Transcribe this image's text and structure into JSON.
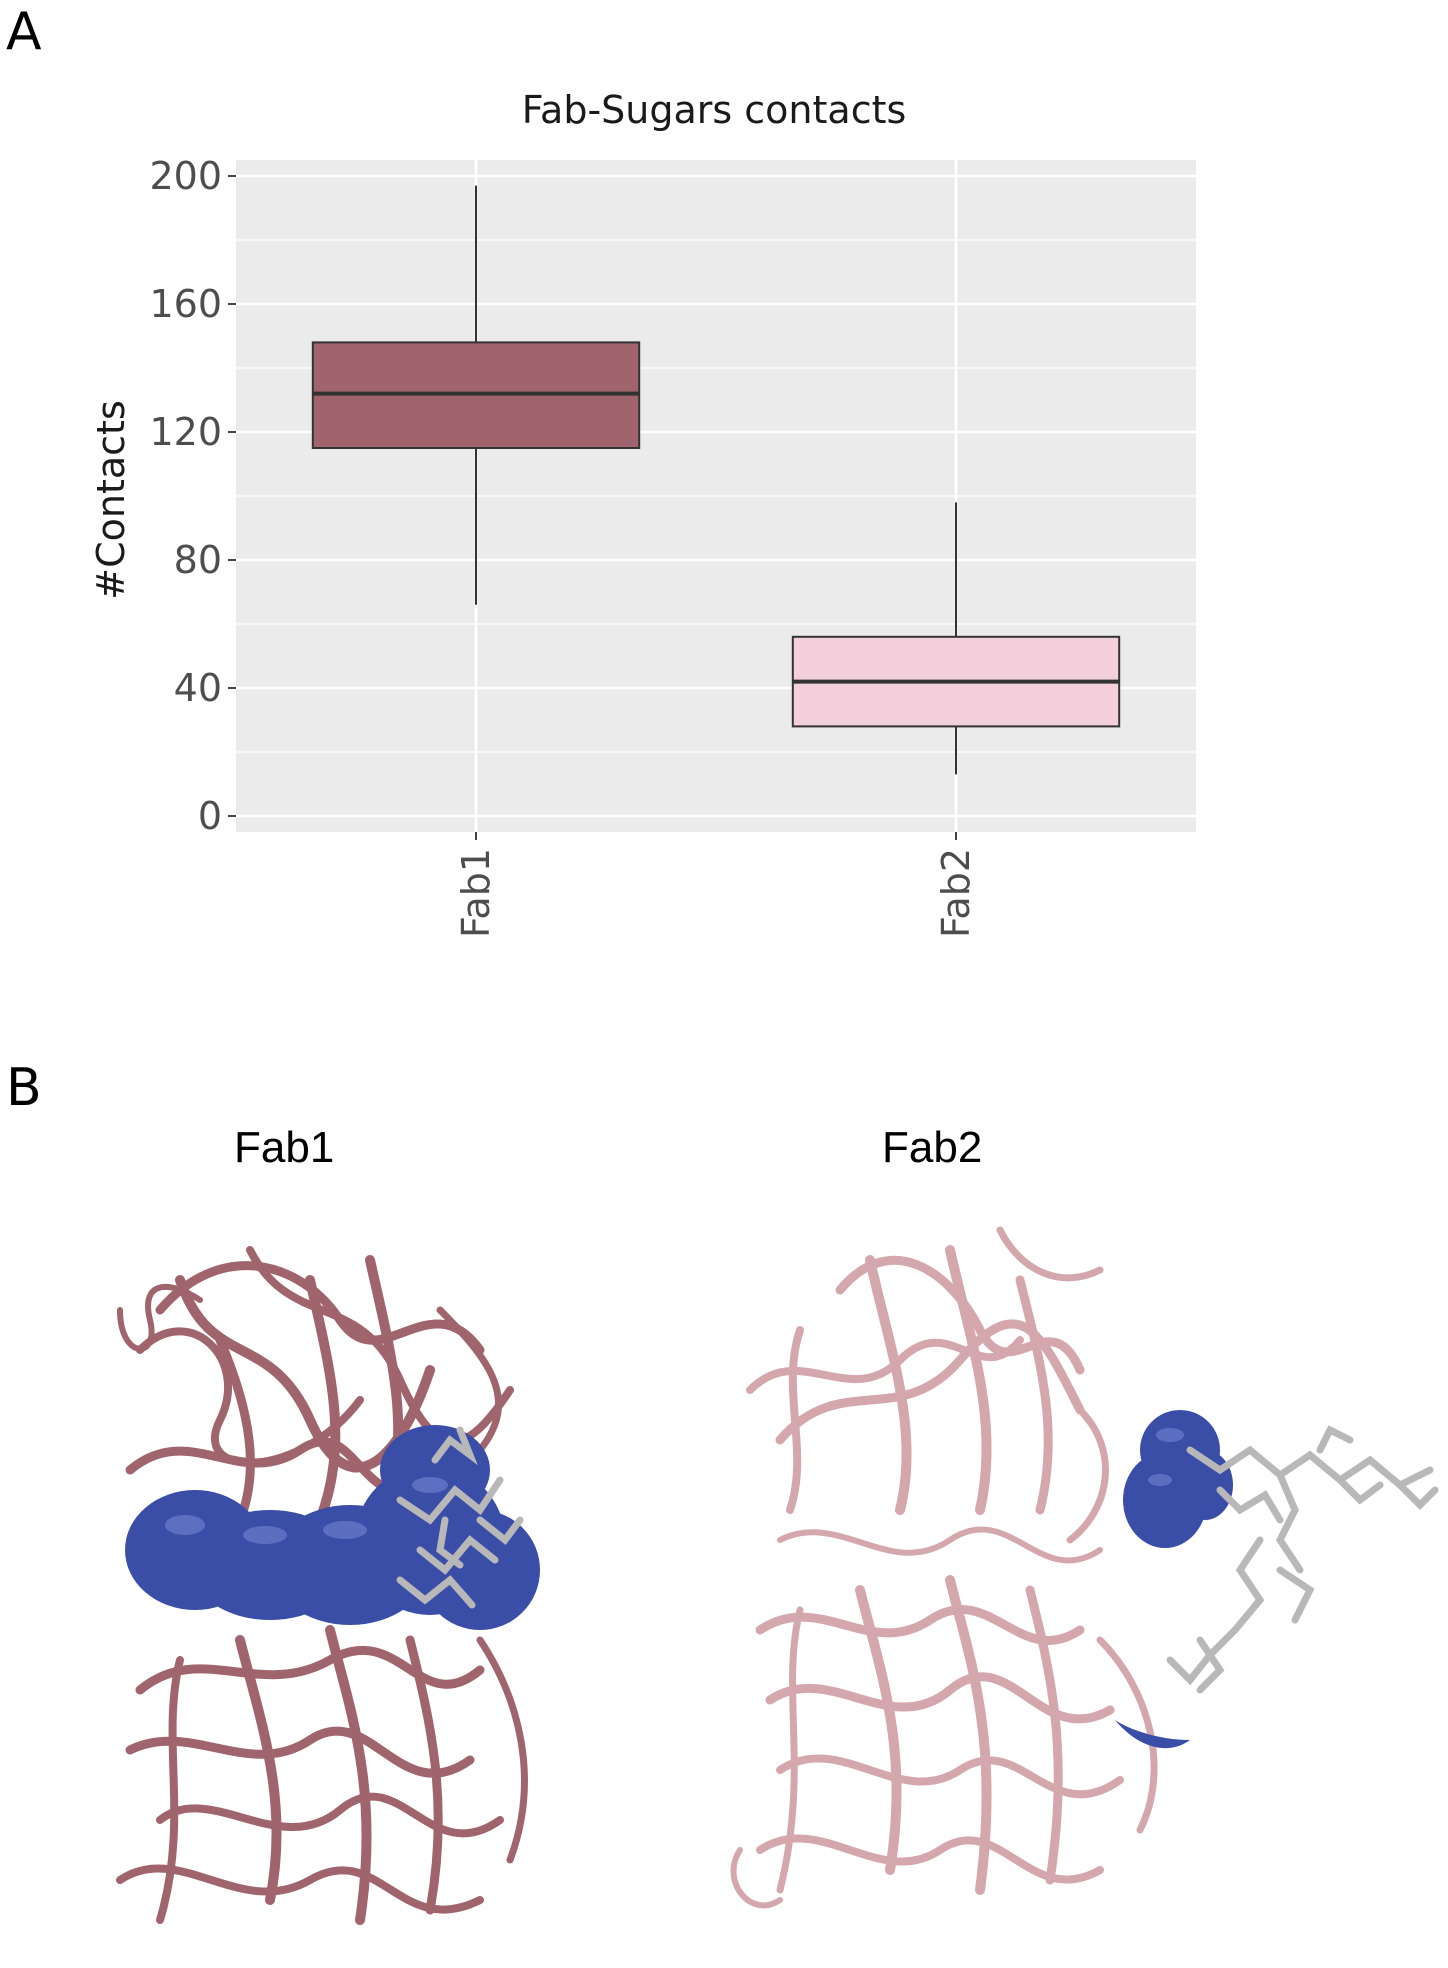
{
  "panels": {
    "a_label": "A",
    "b_label": "B"
  },
  "chart_data": {
    "type": "box",
    "title": "Fab-Sugars contacts",
    "xlabel": "",
    "ylabel": "#Contacts",
    "ylim": [
      -5,
      205
    ],
    "yticks": [
      0,
      40,
      80,
      120,
      160,
      200
    ],
    "ytick_labels": [
      "0",
      "40",
      "80",
      "120",
      "160",
      "200"
    ],
    "categories": [
      "Fab1",
      "Fab2"
    ],
    "boxes": [
      {
        "category": "Fab1",
        "min": 66,
        "q1": 115,
        "median": 132,
        "q3": 148,
        "max": 197,
        "color": "#a0646c"
      },
      {
        "category": "Fab2",
        "min": 13,
        "q1": 28,
        "median": 42,
        "q3": 56,
        "max": 98,
        "color": "#f2cfdb"
      }
    ],
    "grid": true,
    "legend": "none",
    "background": "#ebebeb"
  },
  "structures": {
    "fab1": {
      "title": "Fab1",
      "ribbon_color": "#a0646c",
      "surface_color": "#3a4ea8",
      "sugar_color": "#b8b8b8"
    },
    "fab2": {
      "title": "Fab2",
      "ribbon_color": "#d4a7ad",
      "surface_color": "#3a4ea8",
      "sugar_color": "#b8b8b8"
    }
  }
}
